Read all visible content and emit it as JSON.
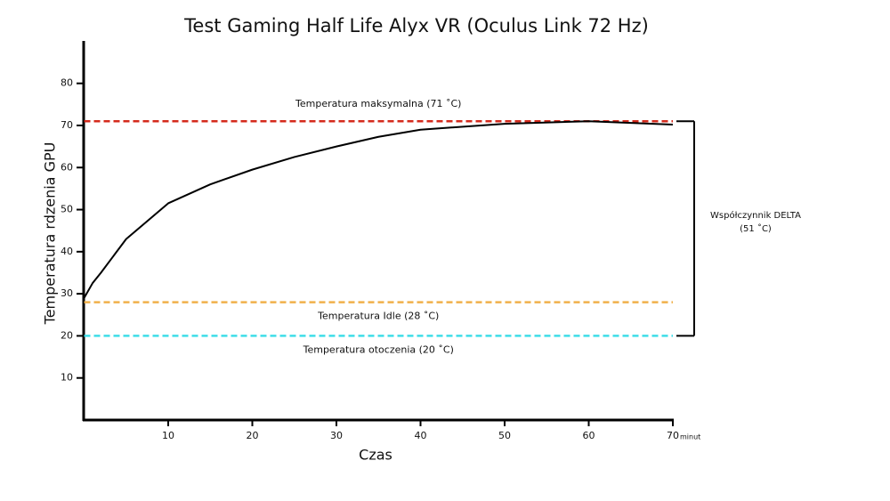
{
  "chart_data": {
    "type": "line",
    "title": "Test Gaming Half Life Alyx VR (Oculus Link 72 Hz)",
    "x_label": "Czas",
    "x_unit": "minut",
    "y_label": "Temperatura rdzenia GPU",
    "x": [
      0,
      1,
      2,
      5,
      10,
      15,
      20,
      25,
      30,
      35,
      40,
      50,
      60,
      70
    ],
    "series": [
      {
        "color": "#000000",
        "values": [
          29,
          32.5,
          35,
          43,
          51.5,
          56,
          59.5,
          62.5,
          65,
          67.3,
          69,
          70.4,
          71,
          70.2
        ]
      }
    ],
    "xlim": [
      0,
      70
    ],
    "ylim": [
      0,
      90
    ],
    "xticks": [
      10,
      20,
      30,
      40,
      50,
      60,
      70
    ],
    "yticks": [
      10,
      20,
      30,
      40,
      50,
      60,
      70,
      80
    ],
    "reference_lines": [
      {
        "value": 71,
        "label": "Temperatura maksymalna (71 ˚C)",
        "color": "#d42a1c",
        "label_side": "above"
      },
      {
        "value": 28,
        "label": "Temperatura Idle (28 ˚C)",
        "color": "#f0b04a",
        "label_side": "below"
      },
      {
        "value": 20,
        "label": "Temperatura otoczenia (20 ˚C)",
        "color": "#3fdde8",
        "label_side": "below"
      }
    ],
    "annotation": {
      "label": "Współczynnik DELTA",
      "value": 51,
      "value_label": "(51 ˚C)"
    }
  }
}
